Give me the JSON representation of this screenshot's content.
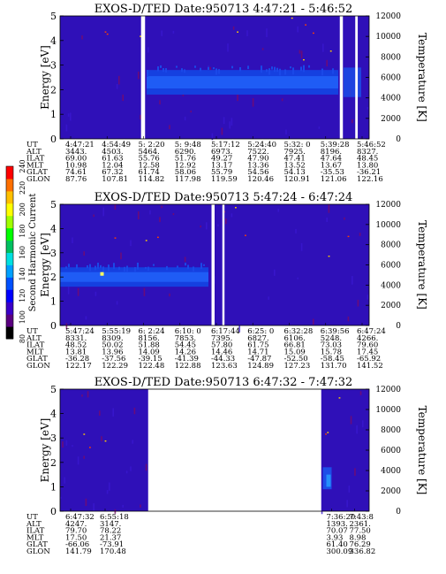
{
  "colorbar": {
    "label": "Second Harmonic Current",
    "ticks": [
      "80",
      "100",
      "120",
      "140",
      "160",
      "180",
      "200",
      "220",
      "240"
    ],
    "colors": [
      "#000000",
      "#5a0080",
      "#3a00c8",
      "#0000ff",
      "#0050ff",
      "#00a0ff",
      "#00e0e0",
      "#00c060",
      "#00ff00",
      "#a0ff00",
      "#ffff00",
      "#ffc000",
      "#ff7000",
      "#ff0000"
    ]
  },
  "table_labels": [
    "UT",
    "ALT",
    "ILAT",
    "MLT",
    "GLAT",
    "GLON"
  ],
  "chart_data": [
    {
      "type": "heatmap",
      "title": "EXOS-D/TED   Date:950713   4:47:21 - 5:46:52",
      "ylabel": "Energy [eV]",
      "y2label": "Temperature [K]",
      "ylim": [
        0,
        5
      ],
      "yticks": [
        "0",
        "1",
        "2",
        "3",
        "4",
        "5"
      ],
      "y2lim": [
        0,
        12000
      ],
      "y2ticks": [
        "0",
        "2000",
        "4000",
        "6000",
        "8000",
        "10000",
        "12000"
      ],
      "band": {
        "center": 2.3,
        "width": 1.0
      },
      "gaps": [
        [
          0.262,
          0.275
        ],
        [
          0.905,
          0.915
        ],
        [
          0.955,
          0.963
        ]
      ],
      "table": {
        "UT": [
          "4:47:21",
          "4:54:49",
          "5: 2:20",
          "5: 9:48",
          "5:17:12",
          "5:24:40",
          "5:32: 0",
          "5:39:28",
          "5:46:52"
        ],
        "ALT": [
          "3443.",
          "4503.",
          "5464.",
          "6290.",
          "6973.",
          "7522.",
          "7925.",
          "8196.",
          "8327."
        ],
        "ILAT": [
          "69.00",
          "61.63",
          "55.76",
          "51.76",
          "49.27",
          "47.90",
          "47.41",
          "47.64",
          "48.45"
        ],
        "MLT": [
          "10.98",
          "12.04",
          "12.58",
          "12.92",
          "13.17",
          "13.36",
          "13.52",
          "13.67",
          "13.80"
        ],
        "GLAT": [
          "74.61",
          "67.32",
          "61.74",
          "58.06",
          "55.79",
          "54.56",
          "54.13",
          "-35.53",
          "-36.21"
        ],
        "GLON": [
          "87.76",
          "107.81",
          "114.82",
          "117.98",
          "119.59",
          "120.46",
          "120.91",
          "121.06",
          "122.16"
        ]
      }
    },
    {
      "type": "heatmap",
      "title": "EXOS-D/TED   Date:950713   5:47:24 - 6:47:24",
      "ylabel": "Energy [eV]",
      "y2label": "Temperature [K]",
      "ylim": [
        0,
        5
      ],
      "yticks": [
        "0",
        "1",
        "2",
        "3",
        "4",
        "5"
      ],
      "y2lim": [
        0,
        12000
      ],
      "y2ticks": [
        "0",
        "2000",
        "4000",
        "6000",
        "8000",
        "10000",
        "12000"
      ],
      "band": {
        "center": 2.0,
        "width": 0.8
      },
      "gaps": [
        [
          0.49,
          0.5
        ],
        [
          0.525,
          0.532
        ]
      ],
      "table": {
        "UT": [
          "5:47:24",
          "5:55:19",
          "6: 2:24",
          "6:10: 0",
          "6:17:44",
          "6:25: 0",
          "6:32:28",
          "6:39:56",
          "6:47:24"
        ],
        "ALT": [
          "8331.",
          "8309.",
          "8156.",
          "7853.",
          "7395.",
          "6827.",
          "6106.",
          "5248.",
          "4266."
        ],
        "ILAT": [
          "48.52",
          "50.02",
          "51.88",
          "54.45",
          "57.80",
          "61.75",
          "66.81",
          "73.03",
          "79.60"
        ],
        "MLT": [
          "13.81",
          "13.96",
          "14.09",
          "14.26",
          "14.46",
          "14.71",
          "15.09",
          "15.78",
          "17.45"
        ],
        "GLAT": [
          "-36.28",
          "-37.56",
          "-39.15",
          "-41.39",
          "-44.33",
          "-47.87",
          "-52.50",
          "-58.45",
          "-65.92"
        ],
        "GLON": [
          "122.17",
          "122.29",
          "122.48",
          "122.88",
          "123.63",
          "124.89",
          "127.23",
          "131.70",
          "141.52"
        ]
      }
    },
    {
      "type": "heatmap",
      "title": "EXOS-D/TED   Date:950713   6:47:32 - 7:47:32",
      "ylabel": "Energy [eV]",
      "y2label": "Temperature [K]",
      "ylim": [
        0,
        5
      ],
      "yticks": [
        "0",
        "1",
        "2",
        "3",
        "4",
        "5"
      ],
      "y2lim": [
        0,
        12000
      ],
      "y2ticks": [
        "0",
        "2000",
        "4000",
        "6000",
        "8000",
        "10000",
        "12000"
      ],
      "data_ranges": [
        [
          0.0,
          0.285
        ],
        [
          0.845,
          1.0
        ]
      ],
      "table": {
        "UT": [
          "6:47:32",
          "6:55:18",
          "7:36:20",
          "7:43:8"
        ],
        "ALT": [
          "4247.",
          "3147.",
          "1393.",
          "2361."
        ],
        "ILAT": [
          "79.70",
          "78.22",
          "70.07",
          "77.50"
        ],
        "MLT": [
          "17.50",
          "21.37",
          "3.93",
          "8.98"
        ],
        "GLAT": [
          "-66.06",
          "-73.91",
          "61.40",
          "76.29"
        ],
        "GLON": [
          "141.79",
          "170.48",
          "300.09",
          "336.82"
        ]
      }
    }
  ]
}
